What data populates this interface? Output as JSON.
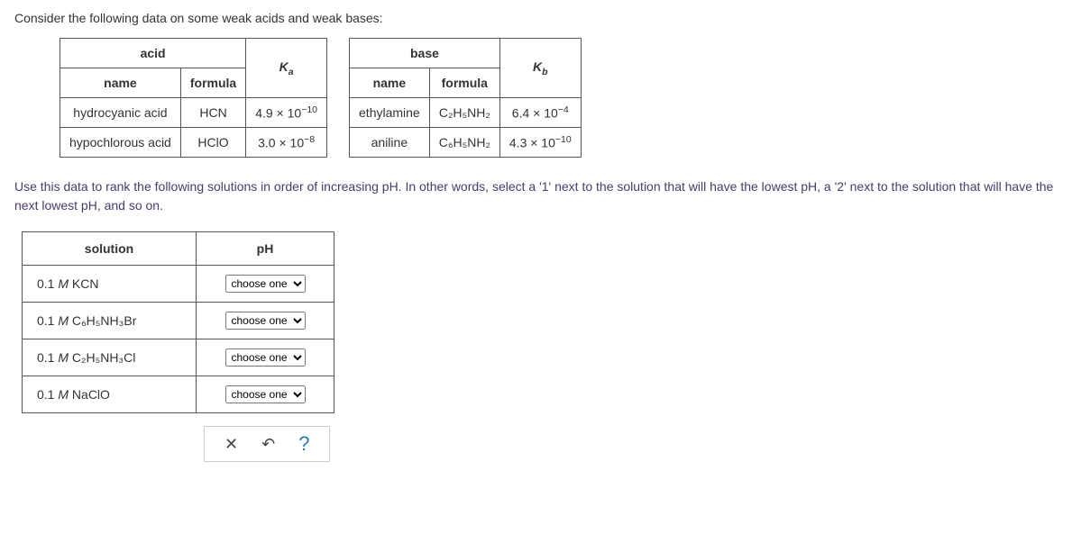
{
  "intro": "Consider the following data on some weak acids and weak bases:",
  "acidTable": {
    "header": {
      "group": "acid",
      "name": "name",
      "formula": "formula",
      "k": "K",
      "ksub": "a"
    },
    "rows": [
      {
        "name": "hydrocyanic acid",
        "formula": "HCN",
        "kval": "4.9 × 10",
        "kexp": "−10"
      },
      {
        "name": "hypochlorous acid",
        "formula": "HClO",
        "kval": "3.0 × 10",
        "kexp": "−8"
      }
    ]
  },
  "baseTable": {
    "header": {
      "group": "base",
      "name": "name",
      "formula": "formula",
      "k": "K",
      "ksub": "b"
    },
    "rows": [
      {
        "name": "ethylamine",
        "formula_html": "C₂H₅NH₂",
        "kval": "6.4 × 10",
        "kexp": "−4"
      },
      {
        "name": "aniline",
        "formula_html": "C₆H₅NH₂",
        "kval": "4.3 × 10",
        "kexp": "−10"
      }
    ]
  },
  "instruction": "Use this data to rank the following solutions in order of increasing pH. In other words, select a '1' next to the solution that will have the lowest pH, a '2' next to the solution that will have the next lowest pH, and so on.",
  "ranking": {
    "colSolution": "solution",
    "colPH": "pH",
    "choosePlaceholder": "choose one",
    "rows": [
      {
        "label_html": "0.1 <i>M</i> KCN"
      },
      {
        "label_html": "0.1 <i>M</i> C₆H₅NH₃Br"
      },
      {
        "label_html": "0.1 <i>M</i> C₂H₅NH₃Cl"
      },
      {
        "label_html": "0.1 <i>M</i> NaClO"
      }
    ]
  },
  "toolbar": {
    "close": "✕",
    "undo": "↶",
    "help": "?"
  }
}
